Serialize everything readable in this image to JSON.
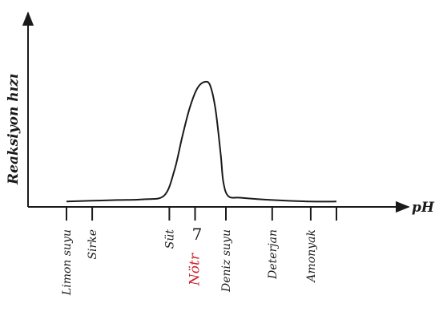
{
  "chart_data": {
    "type": "line",
    "title": "",
    "xlabel": "pH",
    "ylabel": "Reaksiyon hızı",
    "xlim": [
      0,
      14
    ],
    "ylim": [
      0,
      10
    ],
    "grid": false,
    "ticks": [
      {
        "pH": 2.0,
        "label": "Limon suyu",
        "color": "#1a1a1a"
      },
      {
        "pH": 3.0,
        "label": "Sirke",
        "color": "#1a1a1a"
      },
      {
        "pH": 6.0,
        "label": "Süt",
        "color": "#1a1a1a"
      },
      {
        "pH": 7.0,
        "label": "Nötr",
        "color": "#d0202a"
      },
      {
        "pH": 8.2,
        "label": "Deniz suyu",
        "color": "#1a1a1a"
      },
      {
        "pH": 10.0,
        "label": "Deterjan",
        "color": "#1a1a1a"
      },
      {
        "pH": 11.5,
        "label": "Amonyak",
        "color": "#1a1a1a"
      },
      {
        "pH": 12.5,
        "label": "",
        "color": "#1a1a1a"
      }
    ],
    "neutral_value": "7",
    "series": [
      {
        "x": [
          2.0,
          3.0,
          4.0,
          5.0,
          5.8,
          6.2,
          6.5,
          6.8,
          7.1,
          7.4,
          7.6,
          7.8,
          8.0,
          8.1,
          8.3,
          8.8,
          10.0,
          11.5,
          12.5
        ],
        "y": [
          0.2,
          0.25,
          0.3,
          0.35,
          0.6,
          2.3,
          4.5,
          6.5,
          7.8,
          8.2,
          7.9,
          6.3,
          3.3,
          1.5,
          0.55,
          0.45,
          0.3,
          0.2,
          0.2
        ]
      }
    ]
  }
}
